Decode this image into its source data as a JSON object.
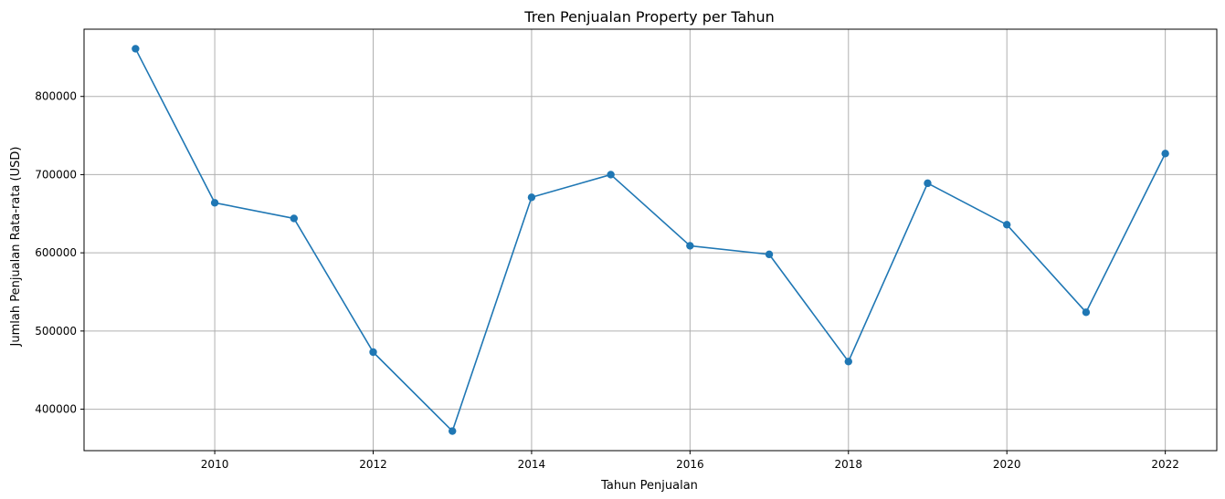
{
  "chart_data": {
    "type": "line",
    "title": "Tren Penjualan Property per Tahun",
    "xlabel": "Tahun Penjualan",
    "ylabel": "Jumlah Penjualan Rata-rata (USD)",
    "x": [
      2009,
      2010,
      2011,
      2012,
      2013,
      2014,
      2015,
      2016,
      2017,
      2018,
      2019,
      2020,
      2021,
      2022
    ],
    "series": [
      {
        "name": "Penjualan Rata-rata",
        "color": "#1f77b4",
        "marker": "circle",
        "values": [
          861000,
          664000,
          644000,
          473000,
          372000,
          671000,
          700000,
          609000,
          598000,
          461000,
          689000,
          636000,
          524000,
          727000
        ]
      }
    ],
    "xlim": [
      2008.35,
      2022.65
    ],
    "ylim": [
      347000,
      886000
    ],
    "xticks": [
      2010,
      2012,
      2014,
      2016,
      2018,
      2020,
      2022
    ],
    "yticks": [
      400000,
      500000,
      600000,
      700000,
      800000
    ],
    "grid": true,
    "grid_color": "#b0b0b0",
    "axis_color": "#000000",
    "legend": "none"
  }
}
